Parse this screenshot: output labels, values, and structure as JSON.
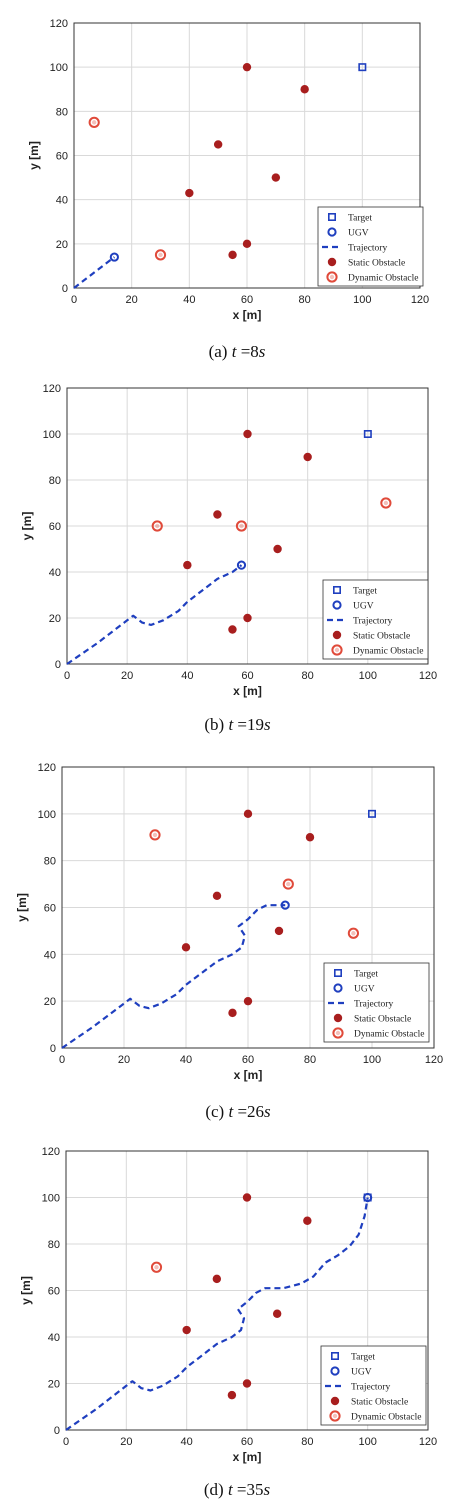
{
  "colors": {
    "trajectory": "#1f3fbf",
    "ugv": "#1f3fbf",
    "target": "#1f3fbf",
    "static_obstacle": "#a81e1e",
    "dynamic_obstacle": "#e04a3a",
    "grid": "#d9d9d9",
    "axis": "#333333"
  },
  "chart_data": [
    {
      "type": "scatter",
      "caption": {
        "label": "(a)",
        "var": "t",
        "eq": "=",
        "num": "8",
        "unit": "s"
      },
      "xlabel": "x [m]",
      "ylabel": "y [m]",
      "xlim": [
        0,
        120
      ],
      "ylim": [
        0,
        120
      ],
      "xticks": [
        0,
        20,
        40,
        60,
        80,
        100,
        120
      ],
      "yticks": [
        0,
        20,
        40,
        60,
        80,
        100,
        120
      ],
      "grid": true,
      "legend_position": "bottom-right",
      "legend": [
        "Target",
        "UGV",
        "Trajectory",
        "Static Obstacle",
        "Dynamic Obstacle"
      ],
      "target": [
        100,
        100
      ],
      "ugv": [
        14,
        14
      ],
      "trajectory": [
        [
          0,
          0
        ],
        [
          7,
          7
        ],
        [
          14,
          14
        ]
      ],
      "static_obstacles": [
        [
          60,
          100
        ],
        [
          80,
          90
        ],
        [
          50,
          65
        ],
        [
          70,
          50
        ],
        [
          40,
          43
        ],
        [
          60,
          20
        ],
        [
          55,
          15
        ]
      ],
      "dynamic_obstacles": [
        [
          7,
          75
        ],
        [
          30,
          15
        ]
      ]
    },
    {
      "type": "scatter",
      "caption": {
        "label": "(b)",
        "var": "t",
        "eq": "=",
        "num": "19",
        "unit": "s"
      },
      "xlabel": "x [m]",
      "ylabel": "y [m]",
      "xlim": [
        0,
        120
      ],
      "ylim": [
        0,
        120
      ],
      "xticks": [
        0,
        20,
        40,
        60,
        80,
        100,
        120
      ],
      "yticks": [
        0,
        20,
        40,
        60,
        80,
        100,
        120
      ],
      "grid": true,
      "legend_position": "bottom-right",
      "legend": [
        "Target",
        "UGV",
        "Trajectory",
        "Static Obstacle",
        "Dynamic Obstacle"
      ],
      "target": [
        100,
        100
      ],
      "ugv": [
        58,
        43
      ],
      "trajectory": [
        [
          0,
          0
        ],
        [
          10,
          9
        ],
        [
          20,
          19
        ],
        [
          22,
          21
        ],
        [
          25,
          18
        ],
        [
          28,
          17
        ],
        [
          32,
          19
        ],
        [
          37,
          23
        ],
        [
          40,
          27
        ],
        [
          45,
          32
        ],
        [
          50,
          37
        ],
        [
          55,
          40
        ],
        [
          58,
          43
        ]
      ],
      "static_obstacles": [
        [
          60,
          100
        ],
        [
          80,
          90
        ],
        [
          50,
          65
        ],
        [
          70,
          50
        ],
        [
          40,
          43
        ],
        [
          60,
          20
        ],
        [
          55,
          15
        ]
      ],
      "dynamic_obstacles": [
        [
          30,
          60
        ],
        [
          58,
          60
        ],
        [
          106,
          70
        ]
      ]
    },
    {
      "type": "scatter",
      "caption": {
        "label": "(c)",
        "var": "t",
        "eq": "=",
        "num": "26",
        "unit": "s"
      },
      "xlabel": "x [m]",
      "ylabel": "y [m]",
      "xlim": [
        0,
        120
      ],
      "ylim": [
        0,
        120
      ],
      "xticks": [
        0,
        20,
        40,
        60,
        80,
        100,
        120
      ],
      "yticks": [
        0,
        20,
        40,
        60,
        80,
        100,
        120
      ],
      "grid": true,
      "legend_position": "bottom-right",
      "legend": [
        "Target",
        "UGV",
        "Trajectory",
        "Static Obstacle",
        "Dynamic Obstacle"
      ],
      "target": [
        100,
        100
      ],
      "ugv": [
        72,
        61
      ],
      "trajectory": [
        [
          0,
          0
        ],
        [
          10,
          9
        ],
        [
          20,
          19
        ],
        [
          22,
          21
        ],
        [
          25,
          18
        ],
        [
          28,
          17
        ],
        [
          32,
          19
        ],
        [
          37,
          23
        ],
        [
          40,
          27
        ],
        [
          45,
          32
        ],
        [
          50,
          37
        ],
        [
          55,
          40
        ],
        [
          58,
          43
        ],
        [
          59,
          48
        ],
        [
          57,
          52
        ],
        [
          60,
          55
        ],
        [
          63,
          59
        ],
        [
          66,
          61
        ],
        [
          72,
          61
        ]
      ],
      "static_obstacles": [
        [
          60,
          100
        ],
        [
          80,
          90
        ],
        [
          50,
          65
        ],
        [
          70,
          50
        ],
        [
          40,
          43
        ],
        [
          60,
          20
        ],
        [
          55,
          15
        ]
      ],
      "dynamic_obstacles": [
        [
          30,
          91
        ],
        [
          73,
          70
        ],
        [
          94,
          49
        ]
      ]
    },
    {
      "type": "scatter",
      "caption": {
        "label": "(d)",
        "var": "t",
        "eq": "=",
        "num": "35",
        "unit": "s"
      },
      "xlabel": "x [m]",
      "ylabel": "y [m]",
      "xlim": [
        0,
        120
      ],
      "ylim": [
        0,
        120
      ],
      "xticks": [
        0,
        20,
        40,
        60,
        80,
        100,
        120
      ],
      "yticks": [
        0,
        20,
        40,
        60,
        80,
        100,
        120
      ],
      "grid": true,
      "legend_position": "bottom-right",
      "legend": [
        "Target",
        "UGV",
        "Trajectory",
        "Static Obstacle",
        "Dynamic Obstacle"
      ],
      "target": [
        100,
        100
      ],
      "ugv": [
        100,
        100
      ],
      "trajectory": [
        [
          0,
          0
        ],
        [
          10,
          9
        ],
        [
          20,
          19
        ],
        [
          22,
          21
        ],
        [
          25,
          18
        ],
        [
          28,
          17
        ],
        [
          32,
          19
        ],
        [
          37,
          23
        ],
        [
          40,
          27
        ],
        [
          45,
          32
        ],
        [
          50,
          37
        ],
        [
          55,
          40
        ],
        [
          58,
          43
        ],
        [
          59,
          48
        ],
        [
          57,
          52
        ],
        [
          60,
          55
        ],
        [
          63,
          59
        ],
        [
          66,
          61
        ],
        [
          72,
          61
        ],
        [
          78,
          63
        ],
        [
          82,
          66
        ],
        [
          86,
          72
        ],
        [
          90,
          75
        ],
        [
          94,
          79
        ],
        [
          97,
          84
        ],
        [
          99,
          92
        ],
        [
          100,
          100
        ]
      ],
      "static_obstacles": [
        [
          60,
          100
        ],
        [
          80,
          90
        ],
        [
          50,
          65
        ],
        [
          70,
          50
        ],
        [
          40,
          43
        ],
        [
          60,
          20
        ],
        [
          55,
          15
        ]
      ],
      "dynamic_obstacles": [
        [
          30,
          70
        ]
      ]
    }
  ]
}
